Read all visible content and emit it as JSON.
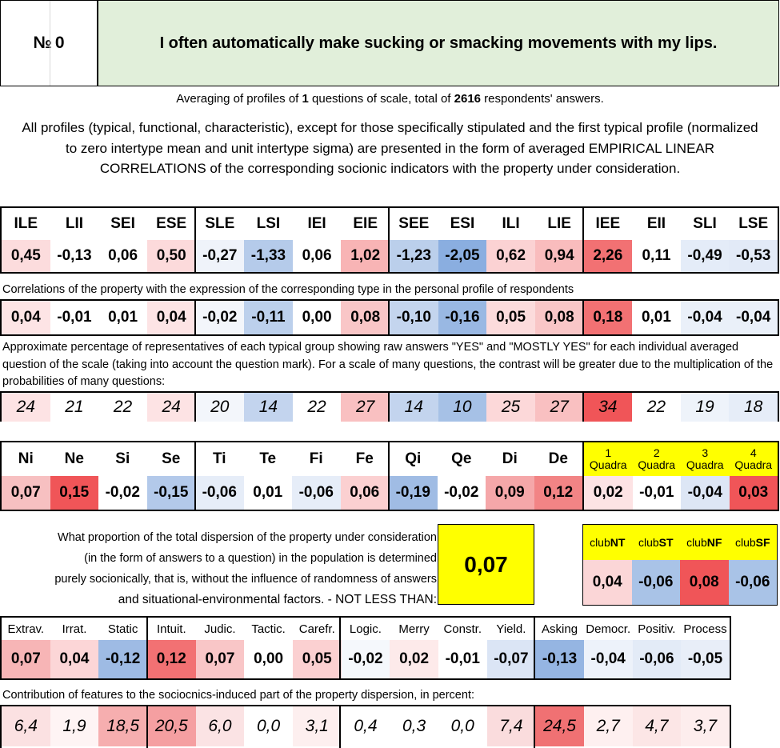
{
  "header": {
    "number_label": "№",
    "number_value": "0",
    "question": "I often automatically make sucking or smacking movements with my lips."
  },
  "averaging": {
    "prefix": "Averaging of profiles of ",
    "questions": "1",
    "middle": " questions of scale, total of ",
    "respondents": "2616",
    "suffix": " respondents' answers."
  },
  "all_profiles_text": "All profiles (typical, functional, characteristic), except for those specifically stipulated and the first typical profile (normalized to zero intertype mean and unit intertype sigma) are presented in the form of averaged EMPIRICAL LINEAR CORRELATIONS of the corresponding socionic indicators with the property under consideration.",
  "types": {
    "headers": [
      "ILE",
      "LII",
      "SEI",
      "ESE",
      "SLE",
      "LSI",
      "IEI",
      "EIE",
      "SEE",
      "ESI",
      "ILI",
      "LIE",
      "IEE",
      "EII",
      "SLI",
      "LSE"
    ],
    "values": [
      "0,45",
      "-0,13",
      "0,06",
      "0,50",
      "-0,27",
      "-1,33",
      "0,06",
      "1,02",
      "-1,23",
      "-2,05",
      "0,62",
      "0,94",
      "2,26",
      "0,11",
      "-0,49",
      "-0,53"
    ],
    "value_colors": [
      "#fcdcdd",
      "#ffffff",
      "#ffffff",
      "#fcdadb",
      "#eff3fa",
      "#b5cbea",
      "#ffffff",
      "#f8b4b5",
      "#bbcfeb",
      "#8aaee0",
      "#fbd2d3",
      "#f9bcbd",
      "#f27173",
      "#ffffff",
      "#e4ecf8",
      "#e2eaf7"
    ],
    "correlation_caption": "Correlations of the property with the expression of the corresponding type in the personal profile of respondents",
    "correlations": [
      "0,04",
      "-0,01",
      "0,01",
      "0,04",
      "-0,02",
      "-0,11",
      "0,00",
      "0,08",
      "-0,10",
      "-0,16",
      "0,05",
      "0,08",
      "0,18",
      "0,01",
      "-0,04",
      "-0,04"
    ],
    "correlation_colors": [
      "#fde4e5",
      "#ffffff",
      "#ffffff",
      "#fde4e5",
      "#f3f6fb",
      "#bcd0ec",
      "#ffffff",
      "#f9c6c7",
      "#c4d5ee",
      "#99b8e3",
      "#fcdbdc",
      "#f9c6c7",
      "#f27173",
      "#ffffff",
      "#eaf0f9",
      "#eaf0f9"
    ],
    "percent_caption": "Approximate percentage of representatives of each typical group showing raw answers \"YES\" and \"MOSTLY YES\" for each individual averaged question of the scale (taking into account the question mark). For a scale of many questions, the contrast will be greater due to the multiplication of the probabilities of many questions:",
    "percents": [
      "24",
      "21",
      "22",
      "24",
      "20",
      "14",
      "22",
      "27",
      "14",
      "10",
      "25",
      "27",
      "34",
      "22",
      "19",
      "18"
    ],
    "percent_colors": [
      "#fde3e4",
      "#ffffff",
      "#ffffff",
      "#fde3e4",
      "#f3f6fb",
      "#c3d4ee",
      "#ffffff",
      "#f9c0c1",
      "#c3d4ee",
      "#a6c1e6",
      "#fcd8d9",
      "#f9c0c1",
      "#f05558",
      "#ffffff",
      "#eef3fa",
      "#e6edf8"
    ]
  },
  "functions": {
    "headers": [
      "Ni",
      "Ne",
      "Si",
      "Se",
      "Ti",
      "Te",
      "Fi",
      "Fe",
      "Qi",
      "Qe",
      "Di",
      "De"
    ],
    "values": [
      "0,07",
      "0,15",
      "-0,02",
      "-0,15",
      "-0,06",
      "0,01",
      "-0,06",
      "0,06",
      "-0,19",
      "-0,02",
      "0,09",
      "0,12"
    ],
    "colors": [
      "#f7c0c1",
      "#f05558",
      "#ffffff",
      "#b3c9ea",
      "#e6edf8",
      "#ffffff",
      "#e6edf8",
      "#fbd0d1",
      "#a0bce4",
      "#ffffff",
      "#f5a7a9",
      "#f28485"
    ]
  },
  "quadras": {
    "numbers": [
      "1",
      "2",
      "3",
      "4"
    ],
    "label": "Quadra",
    "values": [
      "0,02",
      "-0,01",
      "-0,04",
      "0,03"
    ],
    "colors": [
      "#fde3e4",
      "#ffffff",
      "#dde6f5",
      "#f05558"
    ],
    "header_bg": "#ffff00"
  },
  "proportion": {
    "lines": [
      "What proportion of the total dispersion of the property under consideration",
      "(in the form of answers to a question) in the population is determined",
      "purely socionically, that is, without the influence of randomness of answers",
      "and situational-environmental factors. - NOT LESS THAN:"
    ],
    "value": "0,07",
    "box_color": "#ffff00"
  },
  "clubs": {
    "prefix": "club",
    "names": [
      "NT",
      "ST",
      "NF",
      "SF"
    ],
    "values": [
      "0,04",
      "-0,06",
      "0,08",
      "-0,06"
    ],
    "colors": [
      "#fbd6d7",
      "#a9c3e7",
      "#f05558",
      "#a9c3e7"
    ]
  },
  "traits": {
    "headers": [
      "Extrav.",
      "Irrat.",
      "Static",
      "Intuit.",
      "Judic.",
      "Tactic.",
      "Carefr.",
      "Logic.",
      "Merry",
      "Constr.",
      "Yield.",
      "Asking",
      "Democr.",
      "Positiv.",
      "Process"
    ],
    "values": [
      "0,07",
      "0,04",
      "-0,12",
      "0,12",
      "0,07",
      "0,00",
      "0,05",
      "-0,02",
      "0,02",
      "-0,01",
      "-0,07",
      "-0,13",
      "-0,04",
      "-0,06",
      "-0,05"
    ],
    "value_colors": [
      "#f7b5b6",
      "#fcd6d7",
      "#9ebbe4",
      "#f27173",
      "#f9c6c7",
      "#ffffff",
      "#fbd0d1",
      "#f5f8fc",
      "#fdeaea",
      "#ffffff",
      "#dbe5f5",
      "#95b5e2",
      "#edf2fa",
      "#e3ebf7",
      "#e8eef8"
    ],
    "contribution_caption": "Contribution of features to the sociocnics-induced part of the property dispersion, in percent:",
    "contributions": [
      "6,4",
      "1,9",
      "18,5",
      "20,5",
      "6,0",
      "0,0",
      "3,1",
      "0,4",
      "0,3",
      "0,0",
      "7,4",
      "24,5",
      "2,7",
      "4,7",
      "3,7"
    ],
    "contribution_colors": [
      "#fbe1e2",
      "#fef4f4",
      "#f6aeaf",
      "#f59fa1",
      "#fbe3e4",
      "#ffffff",
      "#fdefef",
      "#ffffff",
      "#ffffff",
      "#ffffff",
      "#fadcdd",
      "#f07173",
      "#fef0f0",
      "#fce6e6",
      "#fdeded"
    ]
  }
}
